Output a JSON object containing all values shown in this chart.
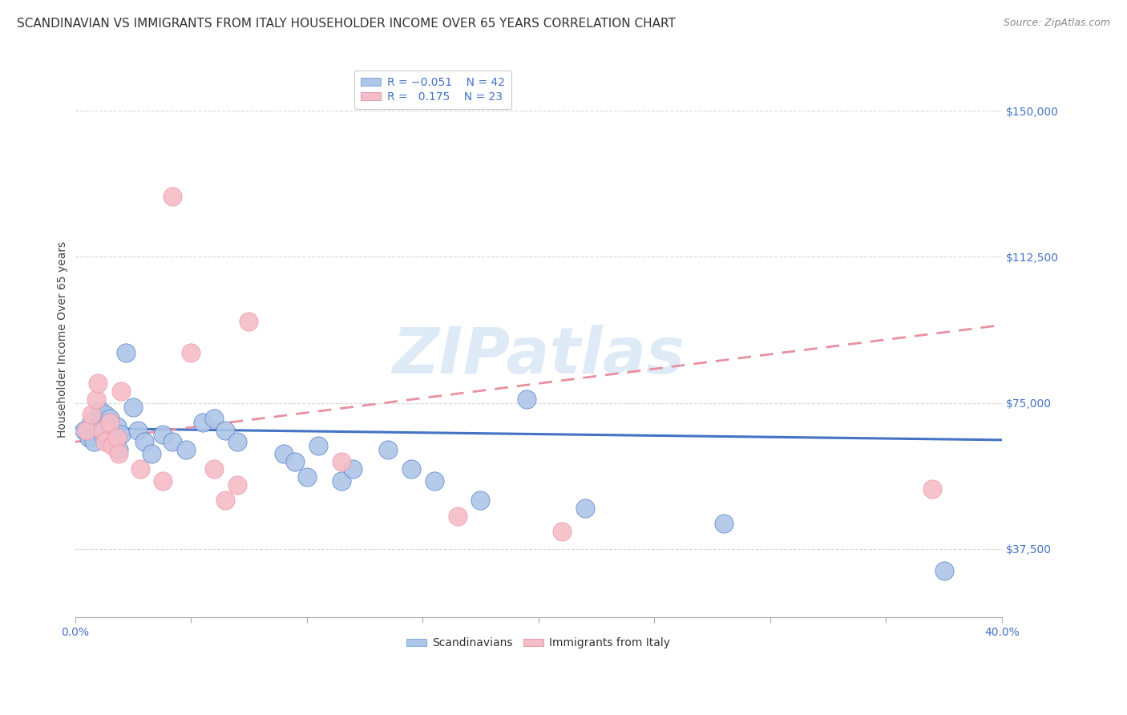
{
  "title": "SCANDINAVIAN VS IMMIGRANTS FROM ITALY HOUSEHOLDER INCOME OVER 65 YEARS CORRELATION CHART",
  "source": "Source: ZipAtlas.com",
  "ylabel": "Householder Income Over 65 years",
  "xlim": [
    0.0,
    0.4
  ],
  "ylim": [
    20000,
    162500
  ],
  "yticks": [
    37500,
    75000,
    112500,
    150000
  ],
  "ytick_labels": [
    "$37,500",
    "$75,000",
    "$112,500",
    "$150,000"
  ],
  "background_color": "#ffffff",
  "grid_color": "#d8d8d8",
  "scandinavian_color": "#aec6e8",
  "italy_color": "#f5bdc8",
  "trend_scand_color": "#4472c4",
  "trend_italy_color": "#e8909f",
  "legend_R_scand": "-0.051",
  "legend_N_scand": "42",
  "legend_R_italy": "0.175",
  "legend_N_italy": "23",
  "scand_x": [
    0.004,
    0.006,
    0.007,
    0.008,
    0.01,
    0.011,
    0.012,
    0.013,
    0.014,
    0.015,
    0.015,
    0.016,
    0.017,
    0.018,
    0.019,
    0.02,
    0.022,
    0.025,
    0.027,
    0.03,
    0.033,
    0.038,
    0.042,
    0.048,
    0.055,
    0.06,
    0.065,
    0.07,
    0.09,
    0.095,
    0.1,
    0.105,
    0.115,
    0.12,
    0.135,
    0.145,
    0.155,
    0.175,
    0.195,
    0.22,
    0.28,
    0.375
  ],
  "scand_y": [
    68000,
    66000,
    70000,
    65000,
    69000,
    73000,
    67000,
    72000,
    66000,
    71000,
    65000,
    68000,
    64000,
    69000,
    63000,
    67000,
    88000,
    74000,
    68000,
    65000,
    62000,
    67000,
    65000,
    63000,
    70000,
    71000,
    68000,
    65000,
    62000,
    60000,
    56000,
    64000,
    55000,
    58000,
    63000,
    58000,
    55000,
    50000,
    76000,
    48000,
    44000,
    32000
  ],
  "italy_x": [
    0.005,
    0.007,
    0.009,
    0.01,
    0.012,
    0.013,
    0.015,
    0.016,
    0.018,
    0.019,
    0.02,
    0.028,
    0.038,
    0.042,
    0.05,
    0.06,
    0.065,
    0.07,
    0.075,
    0.115,
    0.165,
    0.21,
    0.37
  ],
  "italy_y": [
    68000,
    72000,
    76000,
    80000,
    68000,
    65000,
    70000,
    64000,
    66000,
    62000,
    78000,
    58000,
    55000,
    128000,
    88000,
    58000,
    50000,
    54000,
    96000,
    60000,
    46000,
    42000,
    53000
  ],
  "watermark_text": "ZIPatlas",
  "watermark_color": "#c8dff0",
  "watermark_alpha": 0.6,
  "title_fontsize": 11,
  "axis_label_fontsize": 10,
  "tick_fontsize": 10,
  "legend_fontsize": 10,
  "source_fontsize": 9
}
